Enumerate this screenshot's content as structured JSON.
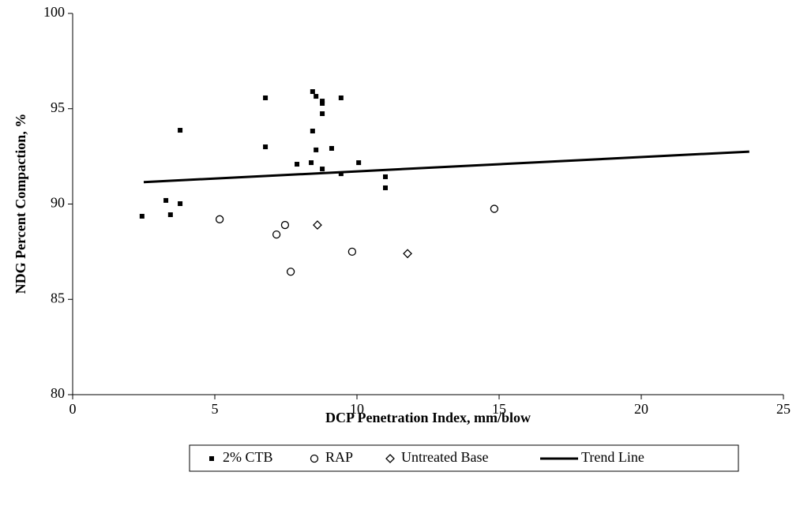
{
  "chart_data": {
    "type": "scatter",
    "x_label": "DCP  Penetration Index, mm/blow",
    "y_label": "NDG Percent Compaction, %",
    "xlim": [
      0,
      25
    ],
    "xticks": [
      0,
      5,
      10,
      15,
      20,
      25
    ],
    "ylim": [
      80,
      100
    ],
    "yticks": [
      80,
      85,
      90,
      95,
      100
    ],
    "legend": "bottom",
    "series": [
      {
        "name": "2% CTB",
        "color": "#000000",
        "marker": "square",
        "x": [
          2.44,
          3.28,
          3.44,
          3.78,
          3.78,
          6.78,
          6.78,
          8.44,
          8.44,
          8.56,
          8.78,
          8.78,
          8.78,
          9.44,
          7.89,
          8.39,
          8.56,
          9.11,
          8.78,
          9.44,
          10.06,
          11.0,
          11.0
        ],
        "values": [
          89.36,
          90.19,
          89.44,
          93.87,
          90.02,
          95.57,
          93.0,
          95.9,
          93.83,
          95.65,
          95.4,
          95.28,
          94.74,
          95.57,
          92.09,
          92.17,
          92.84,
          92.92,
          91.84,
          91.59,
          92.17,
          91.43,
          90.85
        ]
      },
      {
        "name": "RAP",
        "color": "#000000",
        "marker": "circle",
        "x": [
          5.17,
          7.17,
          7.47,
          7.67,
          9.83,
          14.83
        ],
        "values": [
          89.2,
          88.4,
          88.9,
          86.45,
          87.5,
          89.75
        ]
      },
      {
        "name": "Untreated Base",
        "color": "#000000",
        "marker": "diamond",
        "x": [
          8.61,
          11.78
        ],
        "values": [
          88.9,
          87.4
        ]
      },
      {
        "name": "Trend Line",
        "color": "#000000",
        "marker": "line",
        "x": [
          2.5,
          23.8
        ],
        "values": [
          91.15,
          92.75
        ]
      }
    ]
  }
}
